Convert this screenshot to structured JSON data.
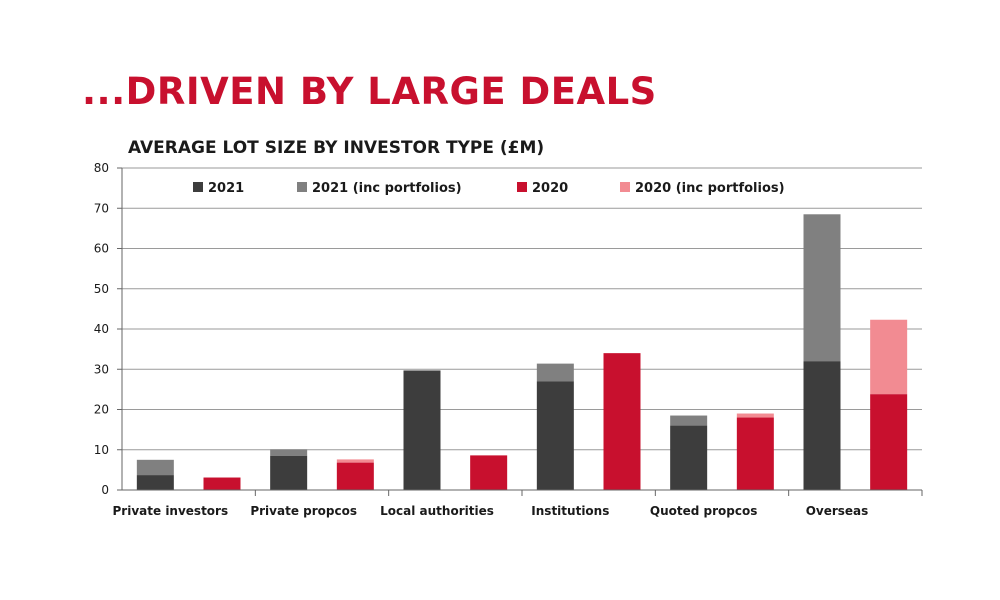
{
  "headline": "...DRIVEN BY LARGE DEALS",
  "colors": {
    "headline": "#c8102e",
    "s2021": "#3d3d3d",
    "s2021_inc": "#808080",
    "s2020": "#c8102e",
    "s2020_inc": "#f28b92",
    "grid": "#9a9a9a"
  },
  "chart_data": {
    "type": "bar",
    "title": "AVERAGE LOT SIZE BY INVESTOR TYPE (£M)",
    "xlabel": "",
    "ylabel": "",
    "ylim": [
      0,
      80
    ],
    "yticks": [
      "0",
      "10",
      "20",
      "30",
      "40",
      "50",
      "60",
      "70",
      "80"
    ],
    "grid": true,
    "legend_position": "top",
    "legend": [
      "2021",
      "2021 (inc portfolios)",
      "2020",
      "2020 (inc portfolios)"
    ],
    "categories": [
      "Private investors",
      "Private propcos",
      "Local authorities",
      "Institutions",
      "Quoted propcos",
      "Overseas"
    ],
    "series": [
      {
        "name": "2021",
        "values": [
          3.7,
          8.5,
          29.7,
          27.0,
          16.0,
          32.0
        ]
      },
      {
        "name": "2021 (inc portfolios)",
        "values": [
          7.5,
          10.1,
          29.7,
          31.4,
          18.5,
          68.5
        ]
      },
      {
        "name": "2020",
        "values": [
          3.1,
          6.8,
          8.6,
          34.0,
          18.0,
          23.8
        ]
      },
      {
        "name": "2020 (inc portfolios)",
        "values": [
          3.1,
          7.6,
          8.6,
          34.0,
          19.0,
          42.3
        ]
      }
    ]
  }
}
